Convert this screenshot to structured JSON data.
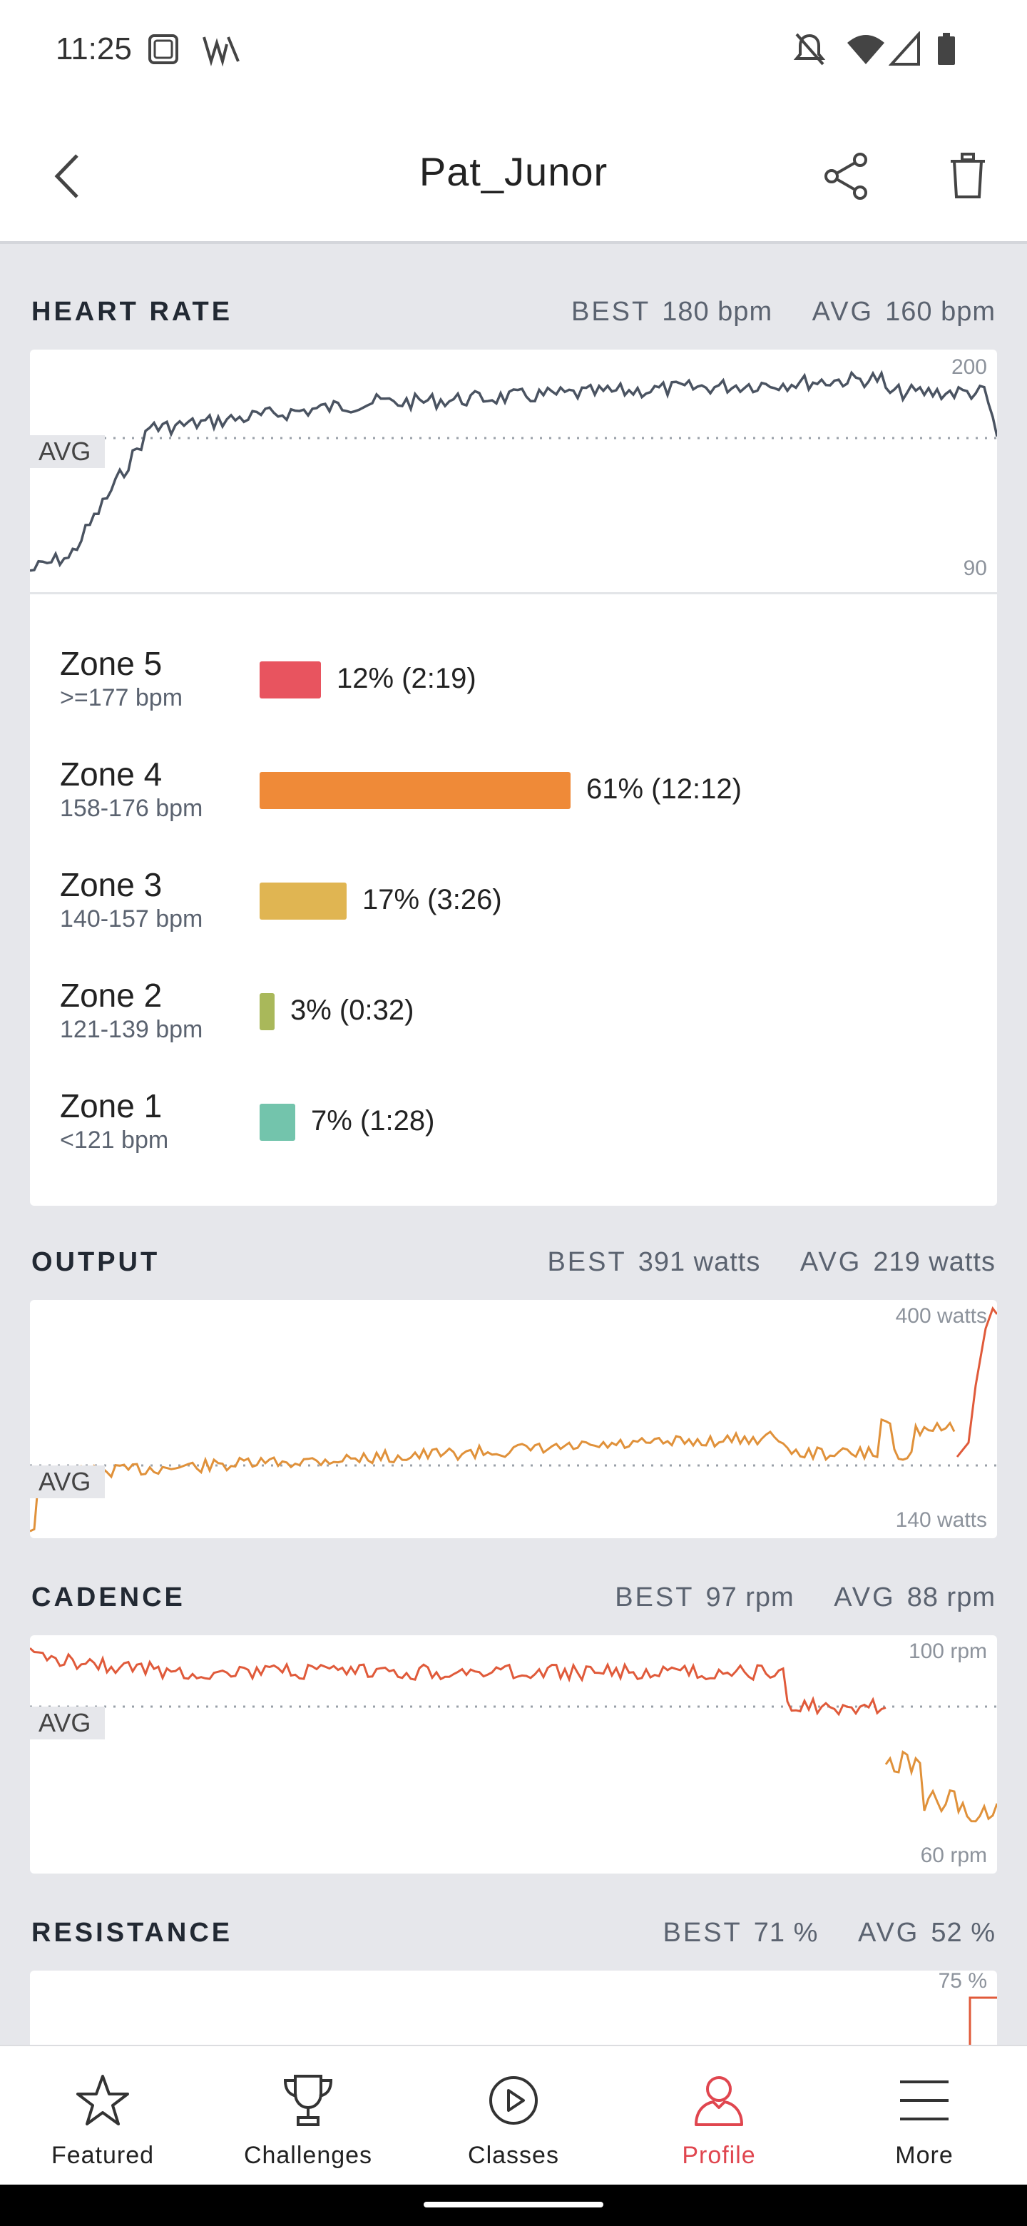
{
  "status_bar": {
    "time": "11:25"
  },
  "header": {
    "title": "Pat_Junor"
  },
  "heart_rate": {
    "label": "HEART RATE",
    "best_label": "BEST",
    "best_value": "180 bpm",
    "avg_label": "AVG",
    "avg_value": "160 bpm",
    "y_max_label": "200",
    "y_min_label": "90",
    "avg_tag": "AVG",
    "color": "#4a5361",
    "zones": [
      {
        "name": "Zone 5",
        "range": ">=177 bpm",
        "value": "12% (2:19)",
        "percent": 12,
        "color": "#e8545f"
      },
      {
        "name": "Zone 4",
        "range": "158-176 bpm",
        "value": "61% (12:12)",
        "percent": 61,
        "color": "#ef8a38"
      },
      {
        "name": "Zone 3",
        "range": "140-157 bpm",
        "value": "17% (3:26)",
        "percent": 17,
        "color": "#e0b552"
      },
      {
        "name": "Zone 2",
        "range": "121-139 bpm",
        "value": "3% (0:32)",
        "percent": 3,
        "color": "#a9b85a"
      },
      {
        "name": "Zone 1",
        "range": "<121 bpm",
        "value": "7% (1:28)",
        "percent": 7,
        "color": "#73c4ac"
      }
    ]
  },
  "output": {
    "label": "OUTPUT",
    "best_label": "BEST",
    "best_value": "391 watts",
    "avg_label": "AVG",
    "avg_value": "219 watts",
    "y_max_label": "400 watts",
    "y_min_label": "140 watts",
    "avg_tag": "AVG"
  },
  "cadence": {
    "label": "CADENCE",
    "best_label": "BEST",
    "best_value": "97 rpm",
    "avg_label": "AVG",
    "avg_value": "88 rpm",
    "y_max_label": "100 rpm",
    "y_min_label": "60 rpm",
    "avg_tag": "AVG"
  },
  "resistance": {
    "label": "RESISTANCE",
    "best_label": "BEST",
    "best_value": "71 %",
    "avg_label": "AVG",
    "avg_value": "52 %",
    "y_max_label": "75 %"
  },
  "tabs": [
    {
      "label": "Featured",
      "icon": "star-icon"
    },
    {
      "label": "Challenges",
      "icon": "trophy-icon"
    },
    {
      "label": "Classes",
      "icon": "play-circle-icon"
    },
    {
      "label": "Profile",
      "icon": "person-icon",
      "active": true
    },
    {
      "label": "More",
      "icon": "menu-icon"
    }
  ],
  "colors": {
    "accent": "#e0464f",
    "output_line": "#e0913a",
    "cadence_line": "#e05a3a"
  }
}
